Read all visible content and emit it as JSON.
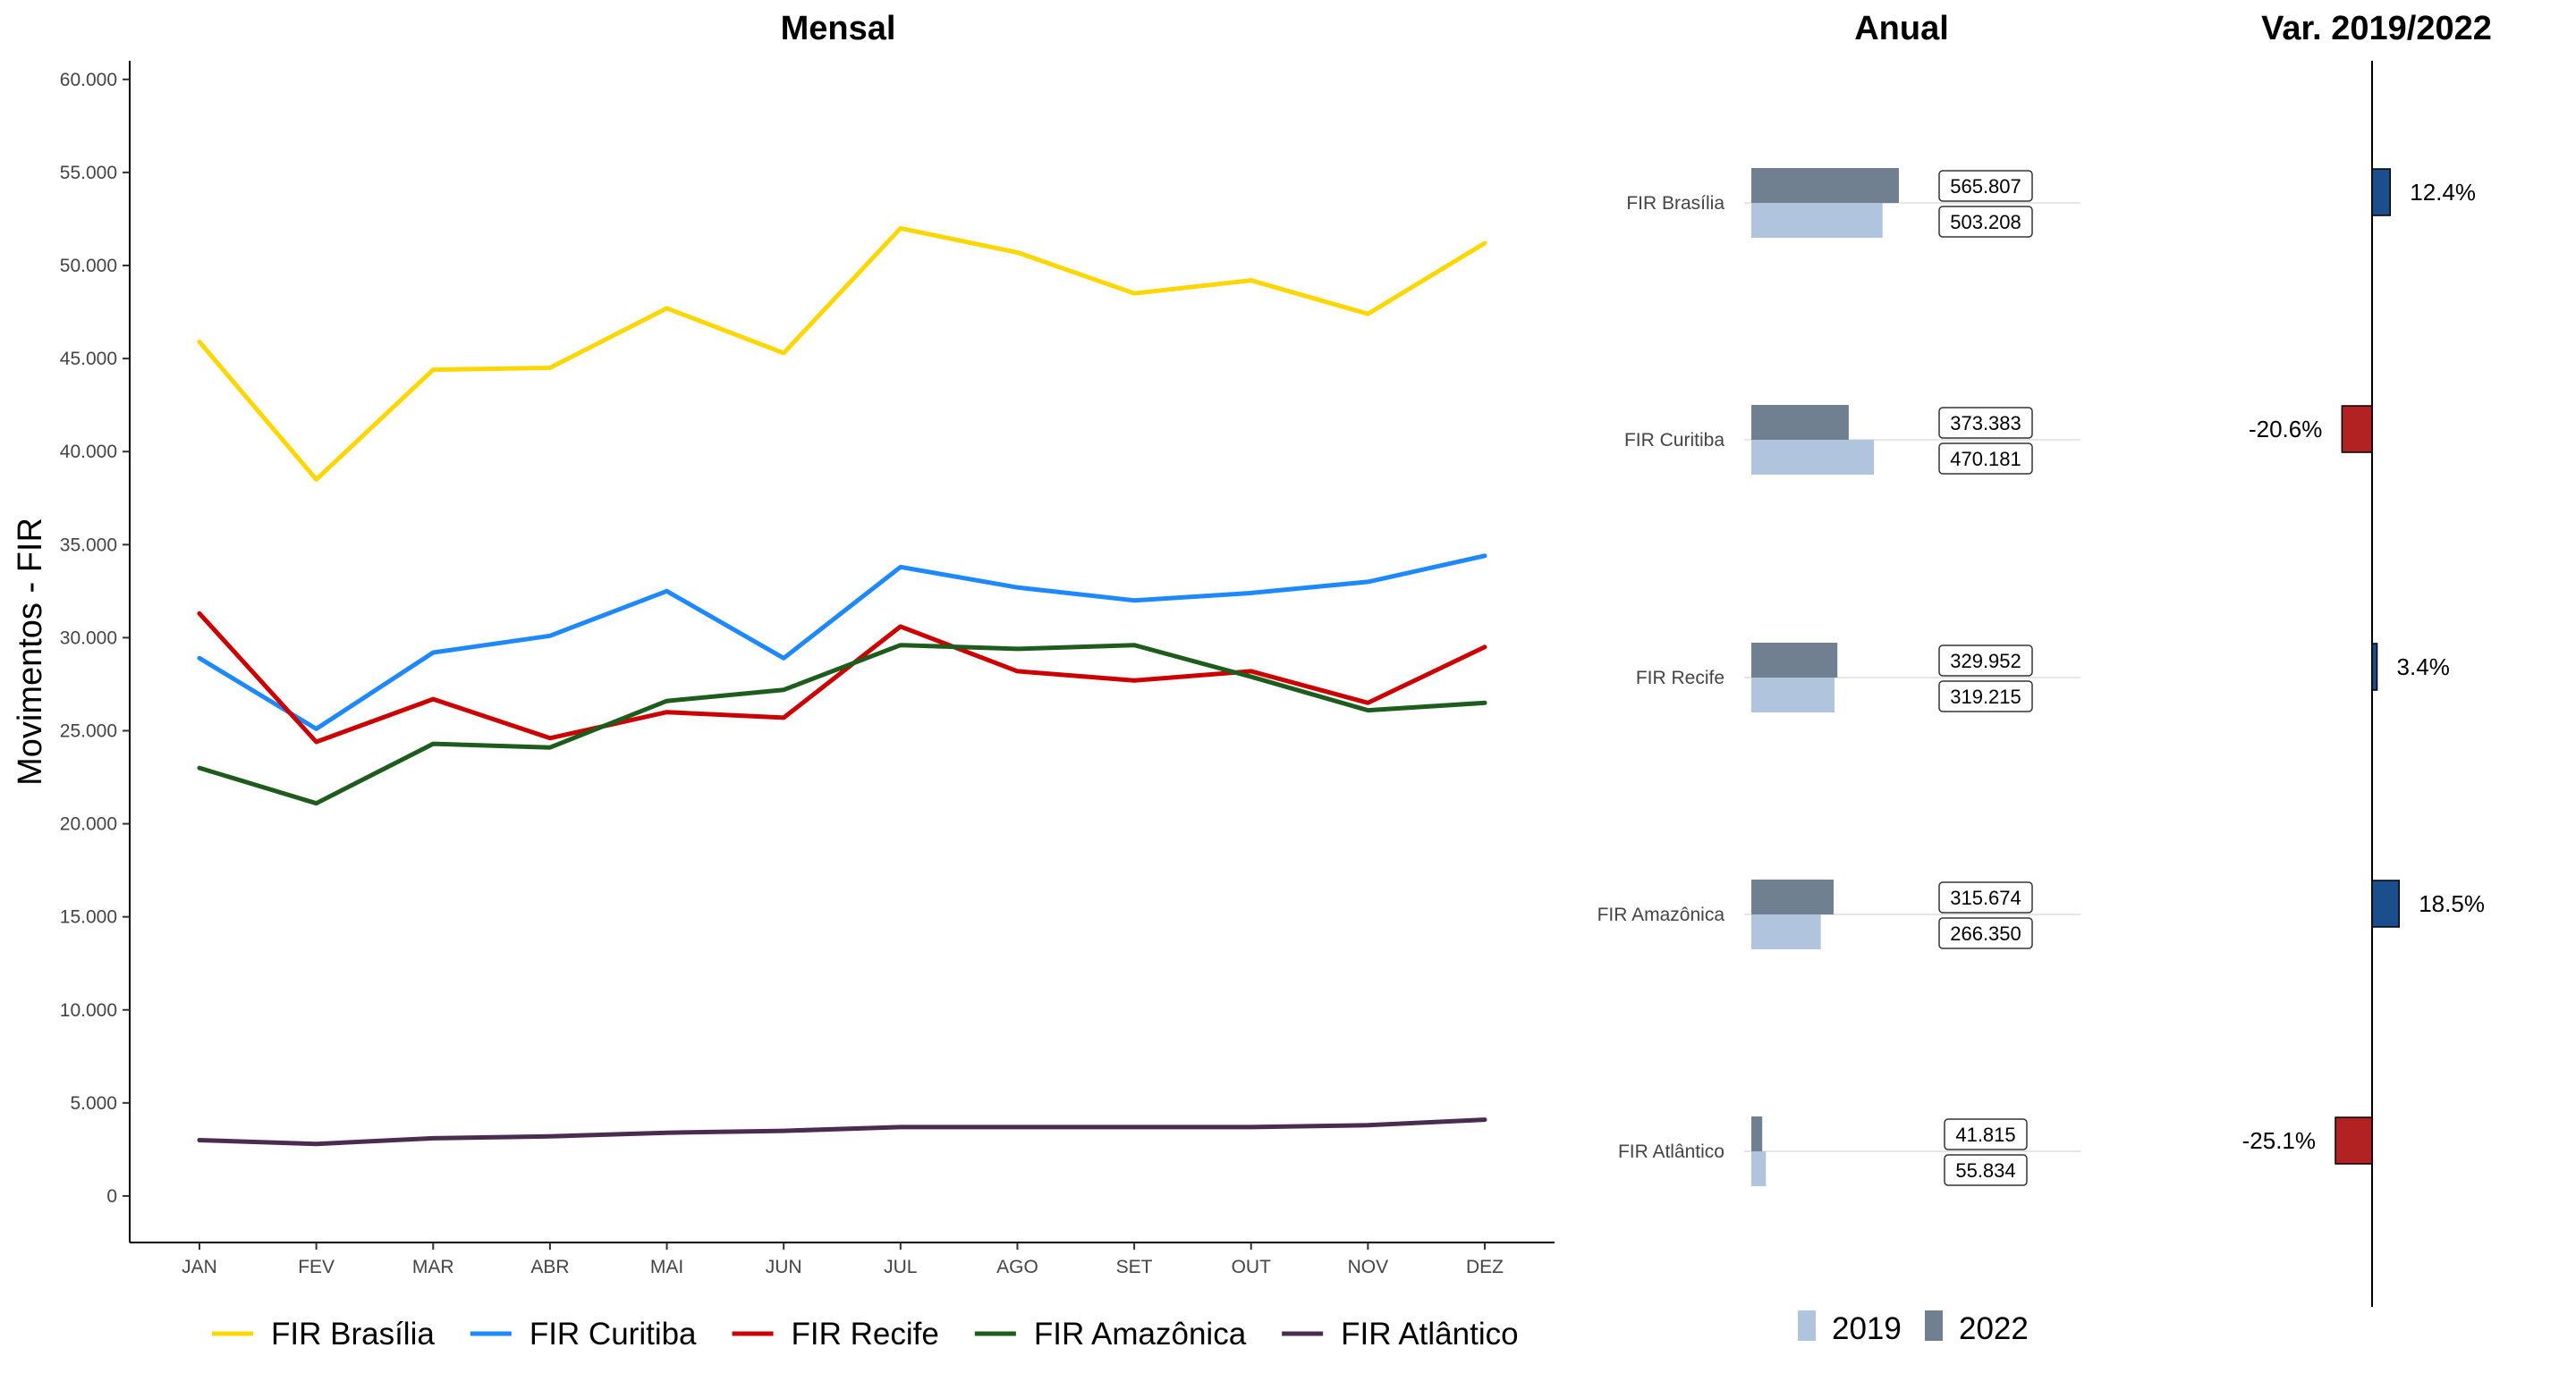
{
  "colors": {
    "FIR Brasília": "#FFD700",
    "FIR Curitiba": "#1E88FF",
    "FIR Recife": "#CC0000",
    "FIR Amazônica": "#1E5C1E",
    "FIR Atlântico": "#4B2C50",
    "bar_2019": "#B0C4DE",
    "bar_2022": "#708090",
    "var_pos": "#1A4E8C",
    "var_neg": "#B22222"
  },
  "chart_data": [
    {
      "type": "line",
      "title": "Mensal",
      "ylabel": "Movimentos - FIR",
      "ylim": [
        -2500,
        61000
      ],
      "yticks": [
        0,
        5000,
        10000,
        15000,
        20000,
        25000,
        30000,
        35000,
        40000,
        45000,
        50000,
        55000,
        60000
      ],
      "ytick_labels": [
        "0",
        "5.000",
        "10.000",
        "15.000",
        "20.000",
        "25.000",
        "30.000",
        "35.000",
        "40.000",
        "45.000",
        "50.000",
        "55.000",
        "60.000"
      ],
      "categories": [
        "JAN",
        "FEV",
        "MAR",
        "ABR",
        "MAI",
        "JUN",
        "JUL",
        "AGO",
        "SET",
        "OUT",
        "NOV",
        "DEZ"
      ],
      "grid": false,
      "legend_position": "bottom",
      "series": [
        {
          "name": "FIR Brasília",
          "values": [
            45900,
            38500,
            44400,
            44500,
            47700,
            45300,
            52000,
            50700,
            48500,
            49200,
            47400,
            51200
          ]
        },
        {
          "name": "FIR Curitiba",
          "values": [
            28900,
            25100,
            29200,
            30100,
            32500,
            28900,
            33800,
            32700,
            32000,
            32400,
            33000,
            34400
          ]
        },
        {
          "name": "FIR Recife",
          "values": [
            31300,
            24400,
            26700,
            24600,
            26000,
            25700,
            30600,
            28200,
            27700,
            28200,
            26500,
            29500
          ]
        },
        {
          "name": "FIR Amazônica",
          "values": [
            23000,
            21100,
            24300,
            24100,
            26600,
            27200,
            29600,
            29400,
            29600,
            27900,
            26100,
            26500
          ]
        },
        {
          "name": "FIR Atlântico",
          "values": [
            3000,
            2800,
            3100,
            3200,
            3400,
            3500,
            3700,
            3700,
            3700,
            3700,
            3800,
            4100
          ]
        }
      ]
    },
    {
      "type": "bar",
      "orientation": "horizontal",
      "title": "Anual",
      "categories": [
        "FIR Brasília",
        "FIR Curitiba",
        "FIR Recife",
        "FIR Amazônica",
        "FIR Atlântico"
      ],
      "legend_position": "bottom",
      "series": [
        {
          "name": "2022",
          "values": [
            565807,
            373383,
            329952,
            315674,
            41815
          ],
          "labels": [
            "565.807",
            "373.383",
            "329.952",
            "315.674",
            "41.815"
          ]
        },
        {
          "name": "2019",
          "values": [
            503208,
            470181,
            319215,
            266350,
            55834
          ],
          "labels": [
            "503.208",
            "470.181",
            "319.215",
            "266.350",
            "55.834"
          ]
        }
      ],
      "legend": [
        "2019",
        "2022"
      ]
    },
    {
      "type": "bar",
      "orientation": "horizontal",
      "title": "Var. 2019/2022",
      "categories": [
        "FIR Brasília",
        "FIR Curitiba",
        "FIR Recife",
        "FIR Amazônica",
        "FIR Atlântico"
      ],
      "values": [
        12.4,
        -20.6,
        3.4,
        18.5,
        -25.1
      ],
      "labels": [
        "12.4%",
        "-20.6%",
        "3.4%",
        "18.5%",
        "-25.1%"
      ]
    }
  ]
}
